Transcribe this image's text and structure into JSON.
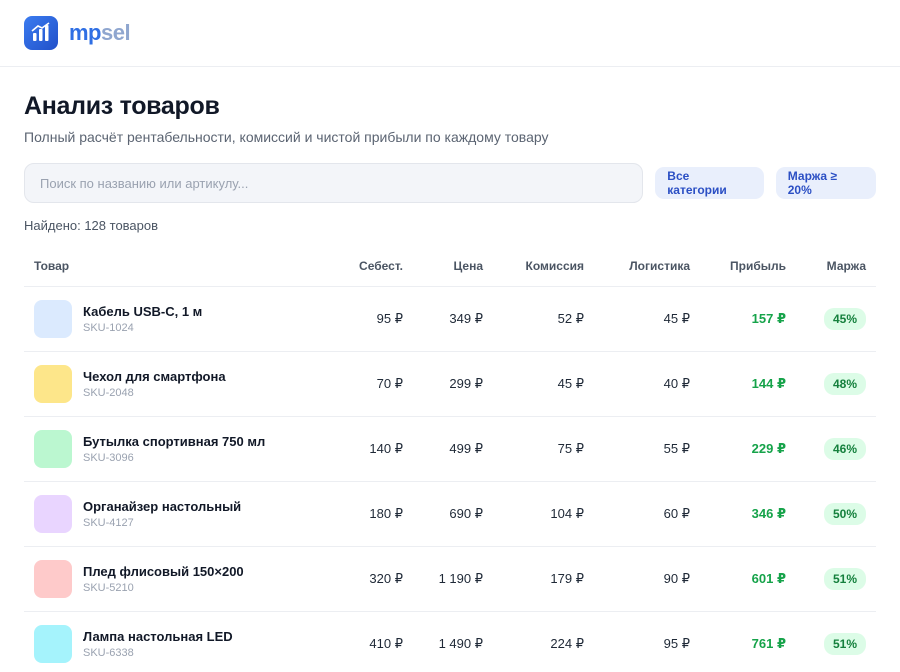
{
  "app": {
    "brand_part1": "mp",
    "brand_part2": "sel",
    "logo_icon": "bar-chart-icon"
  },
  "page": {
    "title": "Анализ товаров",
    "subtitle": "Полный расчёт рентабельности, комиссий и чистой прибыли по каждому товару"
  },
  "search": {
    "placeholder": "Поиск по названию или артикулу...",
    "value": ""
  },
  "filters": {
    "category_label": "Все категории",
    "margin_label": "Маржа ≥ 20%"
  },
  "results": {
    "found_text": "Найдено: 128 товаров"
  },
  "table": {
    "headers": {
      "product": "Товар",
      "cost": "Себест.",
      "price": "Цена",
      "commission": "Комиссия",
      "logistics": "Логистика",
      "profit": "Прибыль",
      "margin": "Маржа"
    },
    "rows": [
      {
        "name": "Кабель USB-C, 1 м",
        "sku": "SKU-1024",
        "cost": "95 ₽",
        "price": "349 ₽",
        "commission": "52 ₽",
        "logistics": "45 ₽",
        "profit": "157 ₽",
        "margin": "45%",
        "thumb_color": "#dbeafe"
      },
      {
        "name": "Чехол для смартфона",
        "sku": "SKU-2048",
        "cost": "70 ₽",
        "price": "299 ₽",
        "commission": "45 ₽",
        "logistics": "40 ₽",
        "profit": "144 ₽",
        "margin": "48%",
        "thumb_color": "#fde68a"
      },
      {
        "name": "Бутылка спортивная 750 мл",
        "sku": "SKU-3096",
        "cost": "140 ₽",
        "price": "499 ₽",
        "commission": "75 ₽",
        "logistics": "55 ₽",
        "profit": "229 ₽",
        "margin": "46%",
        "thumb_color": "#bbf7d0"
      },
      {
        "name": "Органайзер настольный",
        "sku": "SKU-4127",
        "cost": "180 ₽",
        "price": "690 ₽",
        "commission": "104 ₽",
        "logistics": "60 ₽",
        "profit": "346 ₽",
        "margin": "50%",
        "thumb_color": "#e9d5ff"
      },
      {
        "name": "Плед флисовый 150×200",
        "sku": "SKU-5210",
        "cost": "320 ₽",
        "price": "1 190 ₽",
        "commission": "179 ₽",
        "logistics": "90 ₽",
        "profit": "601 ₽",
        "margin": "51%",
        "thumb_color": "#fecaca"
      },
      {
        "name": "Лампа настольная LED",
        "sku": "SKU-6338",
        "cost": "410 ₽",
        "price": "1 490 ₽",
        "commission": "224 ₽",
        "logistics": "95 ₽",
        "profit": "761 ₽",
        "margin": "51%",
        "thumb_color": "#a5f3fc"
      }
    ]
  },
  "colors": {
    "accent": "#2f6fe4",
    "profit": "#16a34a",
    "badge_bg": "#dcfce7"
  }
}
